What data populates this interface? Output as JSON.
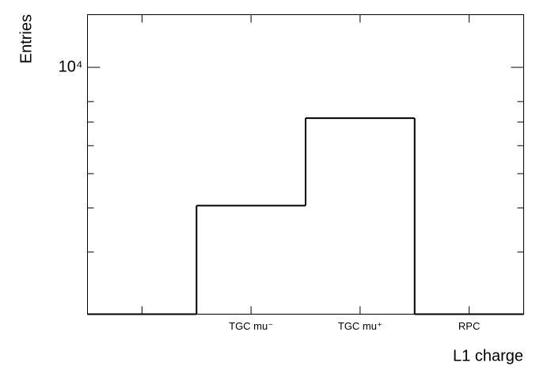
{
  "chart_data": {
    "type": "histogram",
    "x_label": "L1 charge",
    "y_label": "Entries",
    "categories": [
      null,
      "TGC mu⁻",
      "TGC mu⁺",
      "RPC"
    ],
    "values": [
      0,
      4060,
      7180,
      0
    ],
    "color": "#000000",
    "log_y": true,
    "ylim": [
      2000,
      14100
    ],
    "yticks": [
      {
        "value": 10000,
        "label": "10⁴"
      }
    ],
    "yminorticks": [
      3000,
      4000,
      5000,
      6000,
      7000,
      8000
    ],
    "grid": false
  }
}
